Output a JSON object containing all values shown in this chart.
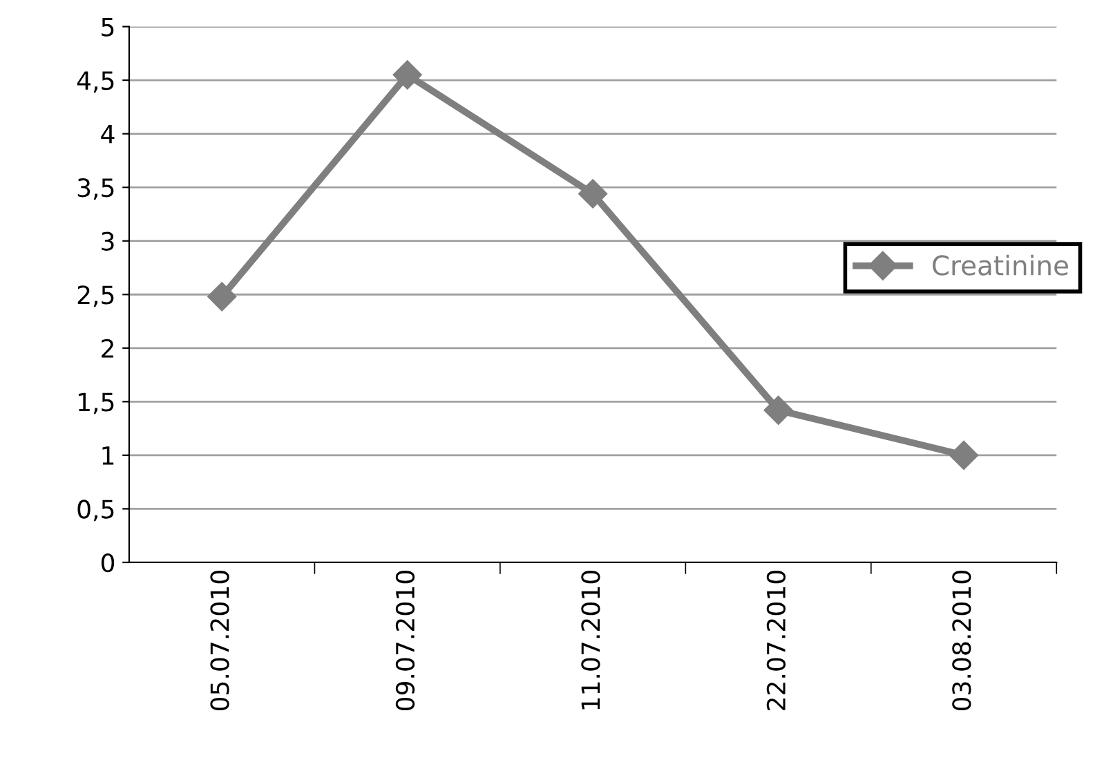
{
  "chart_data": {
    "type": "line",
    "categories": [
      "05.07.2010",
      "09.07.2010",
      "11.07.2010",
      "22.07.2010",
      "03.08.2010"
    ],
    "series": [
      {
        "name": "Creatinine",
        "color": "#7f7f7f",
        "values": [
          2.48,
          4.55,
          3.44,
          1.42,
          1.0
        ]
      }
    ],
    "ylim": [
      0,
      5
    ],
    "yticks": [
      0,
      {
        "value": 0.5,
        "label": "0,5"
      },
      1,
      {
        "value": 1.5,
        "label": "1,5"
      },
      2,
      {
        "value": 2.5,
        "label": "2,5"
      },
      3,
      {
        "value": 3.5,
        "label": "3,5"
      },
      4,
      {
        "value": 4.5,
        "label": "4,5"
      },
      5
    ],
    "grid": "y",
    "legend": "right",
    "marker": "diamond",
    "line_style": "solid"
  }
}
